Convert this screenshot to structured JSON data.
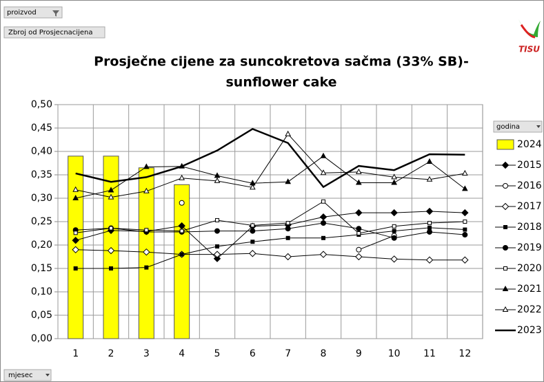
{
  "chart_data": {
    "type": "line",
    "pivot_filter": "proizvod",
    "pivot_data_field": "Zbroj od Prosjecnacijena",
    "legend_field": "godina",
    "axis_field": "mjesec",
    "logo_text": "TISU",
    "title": [
      "Prosječne cijene za suncokretova sačma (33% SB)-",
      "sunflower cake"
    ],
    "categories": [
      "1",
      "2",
      "3",
      "4",
      "5",
      "6",
      "7",
      "8",
      "9",
      "10",
      "11",
      "12"
    ],
    "ylim": [
      0,
      0.5
    ],
    "yticks": [
      {
        "value": 0,
        "label": "0,00"
      },
      {
        "value": 0.05,
        "label": "0,05"
      },
      {
        "value": 0.1,
        "label": "0,10"
      },
      {
        "value": 0.15,
        "label": "0,15"
      },
      {
        "value": 0.2,
        "label": "0,20"
      },
      {
        "value": 0.25,
        "label": "0,25"
      },
      {
        "value": 0.3,
        "label": "0,30"
      },
      {
        "value": 0.35,
        "label": "0,35"
      },
      {
        "value": 0.4,
        "label": "0,40"
      },
      {
        "value": 0.45,
        "label": "0,45"
      },
      {
        "value": 0.5,
        "label": "0,50"
      }
    ],
    "grid": true,
    "legend": "right",
    "series": [
      {
        "name": "2024",
        "type": "bar",
        "color": "#ffff00",
        "values": [
          0.39,
          0.39,
          0.365,
          0.329,
          null,
          null,
          null,
          null,
          null,
          null,
          null,
          null
        ]
      },
      {
        "name": "2015",
        "color": "#000000",
        "marker": "diamond",
        "filled": true,
        "values": [
          0.21,
          0.231,
          0.229,
          0.241,
          0.171,
          0.24,
          0.243,
          0.26,
          0.269,
          0.269,
          0.272,
          0.269
        ]
      },
      {
        "name": "2016",
        "color": "#000000",
        "marker": "circle",
        "filled": false,
        "values": [
          null,
          null,
          null,
          0.29,
          null,
          null,
          null,
          null,
          0.19,
          0.22,
          null,
          null
        ]
      },
      {
        "name": "2017",
        "color": "#000000",
        "marker": "diamond",
        "filled": false,
        "values": [
          0.19,
          0.188,
          0.185,
          0.18,
          0.18,
          0.182,
          0.175,
          0.18,
          0.175,
          0.17,
          0.168,
          0.168
        ]
      },
      {
        "name": "2018",
        "color": "#000000",
        "marker": "square",
        "filled": true,
        "values": [
          0.15,
          0.15,
          0.152,
          0.18,
          0.197,
          0.207,
          0.215,
          0.215,
          0.222,
          0.23,
          0.237,
          0.233
        ]
      },
      {
        "name": "2019",
        "color": "#000000",
        "marker": "circle",
        "filled": true,
        "values": [
          0.232,
          0.236,
          0.228,
          0.228,
          0.23,
          0.23,
          0.235,
          0.247,
          0.235,
          0.215,
          0.228,
          0.222
        ]
      },
      {
        "name": "2020",
        "color": "#000000",
        "marker": "square",
        "filled": false,
        "values": [
          0.226,
          0.236,
          0.232,
          0.23,
          0.253,
          0.242,
          0.247,
          0.293,
          0.225,
          0.24,
          0.247,
          0.25
        ]
      },
      {
        "name": "2021",
        "color": "#000000",
        "marker": "triangle",
        "filled": true,
        "values": [
          0.3,
          0.317,
          0.367,
          0.368,
          0.348,
          0.332,
          0.335,
          0.39,
          0.333,
          0.333,
          0.378,
          0.32
        ]
      },
      {
        "name": "2022",
        "color": "#000000",
        "marker": "triangle",
        "filled": false,
        "values": [
          0.318,
          0.302,
          0.315,
          0.343,
          0.337,
          0.323,
          0.437,
          0.354,
          0.356,
          0.345,
          0.34,
          0.353
        ]
      },
      {
        "name": "2023",
        "color": "#000000",
        "marker": "none",
        "line_width": 2.5,
        "values": [
          0.353,
          0.335,
          0.345,
          0.368,
          0.402,
          0.448,
          0.418,
          0.324,
          0.369,
          0.36,
          0.394,
          0.393
        ]
      }
    ]
  }
}
